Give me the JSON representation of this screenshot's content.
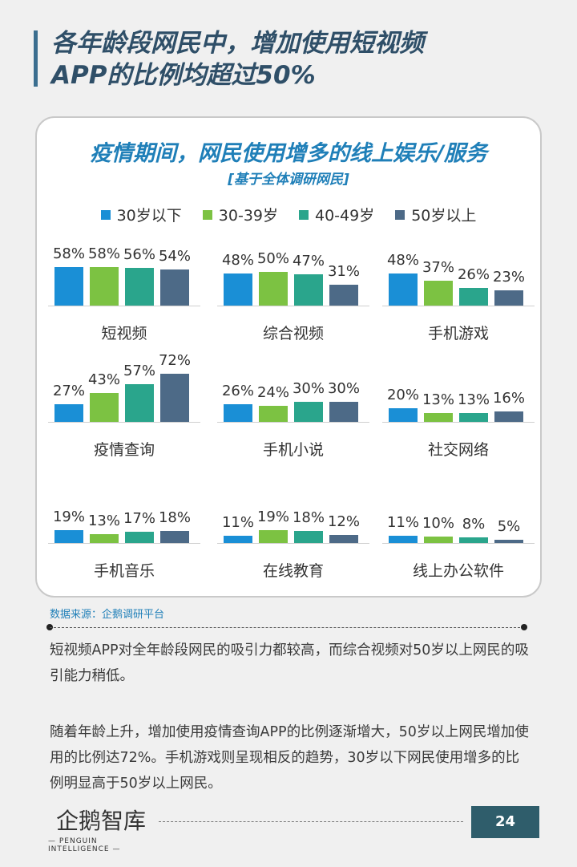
{
  "header": {
    "title_line1": "各年龄段网民中，增加使用短视频",
    "title_line2": "APP的比例均超过50%"
  },
  "chart_data": {
    "type": "bar",
    "title": "疫情期间，网民使用增多的线上娱乐/服务",
    "subtitle": "[基于全体调研网民]",
    "series": [
      {
        "name": "30岁以下",
        "color": "#1a8fd6"
      },
      {
        "name": "30-39岁",
        "color": "#7cc242"
      },
      {
        "name": "40-49岁",
        "color": "#2aa58c"
      },
      {
        "name": "50岁以上",
        "color": "#4d6a87"
      }
    ],
    "categories": [
      "短视频",
      "综合视频",
      "手机游戏",
      "疫情查询",
      "手机小说",
      "社交网络",
      "手机音乐",
      "在线教育",
      "线上办公软件"
    ],
    "values": [
      [
        58,
        58,
        56,
        54
      ],
      [
        48,
        50,
        47,
        31
      ],
      [
        48,
        37,
        26,
        23
      ],
      [
        27,
        43,
        57,
        72
      ],
      [
        26,
        24,
        30,
        30
      ],
      [
        20,
        13,
        13,
        16
      ],
      [
        19,
        13,
        17,
        18
      ],
      [
        11,
        19,
        18,
        12
      ],
      [
        11,
        10,
        8,
        5
      ]
    ],
    "labels": [
      [
        "58%",
        "58%",
        "56%",
        "54%"
      ],
      [
        "48%",
        "50%",
        "47%",
        "31%"
      ],
      [
        "48%",
        "37%",
        "26%",
        "23%"
      ],
      [
        "27%",
        "43%",
        "57%",
        "72%"
      ],
      [
        "26%",
        "24%",
        "30%",
        "30%"
      ],
      [
        "20%",
        "13%",
        "13%",
        "16%"
      ],
      [
        "19%",
        "13%",
        "17%",
        "18%"
      ],
      [
        "11%",
        "19%",
        "18%",
        "12%"
      ],
      [
        "11%",
        "10%",
        "8%",
        "5%"
      ]
    ],
    "ylim": [
      0,
      72
    ]
  },
  "source": "数据来源：企鹅调研平台",
  "paragraphs": [
    "短视频APP对全年龄段网民的吸引力都较高，而综合视频对50岁以上网民的吸引能力稍低。",
    "随着年龄上升，增加使用疫情查询APP的比例逐渐增大，50岁以上网民增加使用的比例达72%。手机游戏则呈现相反的趋势，30岁以下网民使用增多的比例明显高于50岁以上网民。"
  ],
  "footer": {
    "logo_text": "企鹅智库",
    "logo_sub": "— PENGUIN  INTELLIGENCE —",
    "page_number": "24"
  }
}
